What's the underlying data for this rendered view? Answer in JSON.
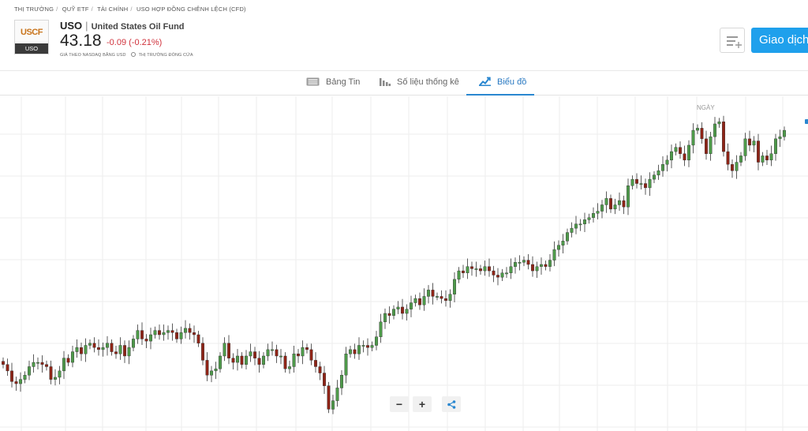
{
  "breadcrumb": [
    {
      "label": "THỊ TRƯỜNG"
    },
    {
      "label": "QUỸ ETF"
    },
    {
      "label": "TÀI CHÍNH"
    },
    {
      "label": "USO HỢP ĐỒNG CHÊNH LỆCH (CFD)"
    }
  ],
  "breadcrumb_sep": "/",
  "instrument": {
    "logo_text": "USCF",
    "logo_ticker": "USO",
    "symbol": "USO",
    "name": "United States Oil Fund",
    "price": "43.18",
    "change": "-0.09 (-0.21%)",
    "price_source": "GIÁ THEO NASDAQ BẰNG USD",
    "market_status": "THỊ TRƯỜNG ĐÓNG CỬA"
  },
  "actions": {
    "trade_label": "Giao dịch"
  },
  "tabs": [
    {
      "label": "Bảng Tin",
      "icon": "news-icon",
      "active": false
    },
    {
      "label": "Số liệu thống kê",
      "icon": "bar-chart-icon",
      "active": false
    },
    {
      "label": "Biểu đồ",
      "icon": "trend-chart-icon",
      "active": true
    }
  ],
  "chart": {
    "period_label": "NGÀY",
    "zoom_out_label": "−",
    "zoom_in_label": "+",
    "share_icon": "share-icon",
    "colors": {
      "up": "#4e9a4a",
      "down": "#8e2417",
      "grid": "#eeeeee",
      "accent": "#2a87d0"
    }
  },
  "chart_data": {
    "type": "candlestick",
    "x_axis_labels_visible": false,
    "y_axis_labels_visible": false,
    "grid": true,
    "closes": [
      38.9,
      38.6,
      38.1,
      38.0,
      38.2,
      38.4,
      38.8,
      39.0,
      39.0,
      38.9,
      38.8,
      38.2,
      38.3,
      38.6,
      39.2,
      39.0,
      39.5,
      39.7,
      39.4,
      39.8,
      39.9,
      39.7,
      39.6,
      39.7,
      39.9,
      39.5,
      39.4,
      39.8,
      39.3,
      39.7,
      40.1,
      40.5,
      40.1,
      40.0,
      40.3,
      40.5,
      40.3,
      40.4,
      40.5,
      40.4,
      40.1,
      40.4,
      40.6,
      40.4,
      40.3,
      39.9,
      39.1,
      38.4,
      38.6,
      38.7,
      39.3,
      39.9,
      39.2,
      39.0,
      39.3,
      38.9,
      39.3,
      39.5,
      39.2,
      38.9,
      39.3,
      39.6,
      39.6,
      39.3,
      39.3,
      38.7,
      38.8,
      39.4,
      39.3,
      39.7,
      39.6,
      39.1,
      38.8,
      38.5,
      37.9,
      36.8,
      37.2,
      37.8,
      38.4,
      39.4,
      39.6,
      39.4,
      39.8,
      39.8,
      39.7,
      39.8,
      40.2,
      40.9,
      41.3,
      41.2,
      41.5,
      41.6,
      41.3,
      41.5,
      41.8,
      42.0,
      41.7,
      42.1,
      42.4,
      42.1,
      42.1,
      42.0,
      41.9,
      42.2,
      42.9,
      43.3,
      43.2,
      43.5,
      43.4,
      43.4,
      43.3,
      43.5,
      43.3,
      43.1,
      43.0,
      43.2,
      43.2,
      43.5,
      43.7,
      43.7,
      43.8,
      43.6,
      43.3,
      43.5,
      43.6,
      43.5,
      43.8,
      44.3,
      44.5,
      44.7,
      45.1,
      45.3,
      45.5,
      45.5,
      45.7,
      45.8,
      46.0,
      46.1,
      46.4,
      46.7,
      46.2,
      46.4,
      46.6,
      46.3,
      47.3,
      47.6,
      47.4,
      47.4,
      47.2,
      47.6,
      47.8,
      48.0,
      48.3,
      48.5,
      48.9,
      49.1,
      48.8,
      48.5,
      49.2,
      49.9,
      50.0,
      49.5,
      48.8,
      49.6,
      50.2,
      50.3,
      48.9,
      48.3,
      48.0,
      48.4,
      48.7,
      49.5,
      49.2,
      49.4,
      48.4,
      48.7,
      48.5,
      48.8,
      49.5,
      49.6,
      49.9
    ]
  }
}
